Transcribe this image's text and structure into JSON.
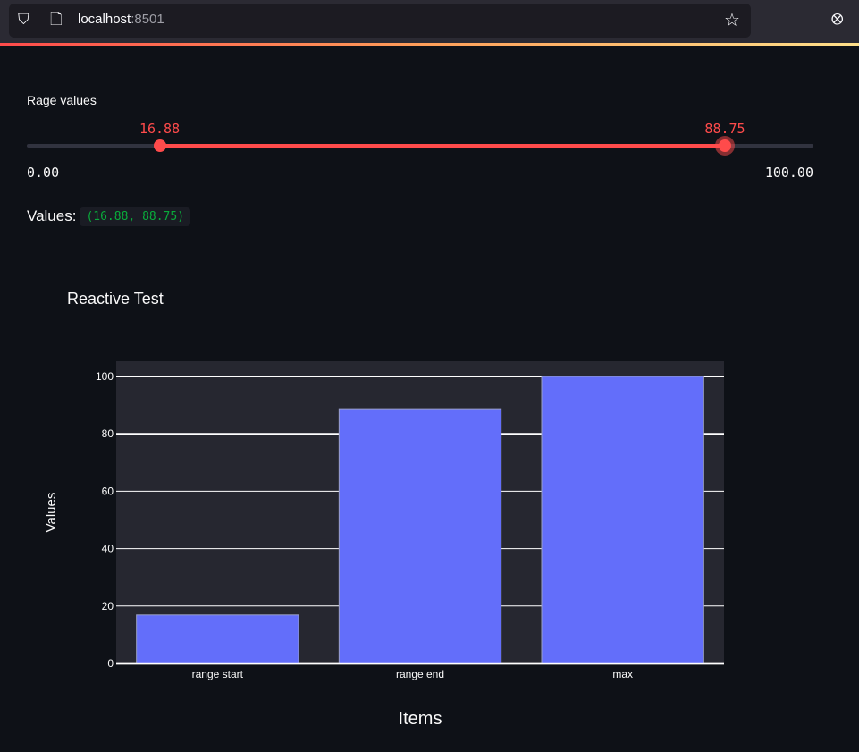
{
  "browser": {
    "host": "localhost",
    "port": ":8501",
    "icons": [
      "shield-icon",
      "page-icon",
      "star-icon",
      "pocket-icon"
    ]
  },
  "slider": {
    "label": "Rage values",
    "min": 0,
    "max": 100,
    "low": 16.88,
    "high": 88.75,
    "low_label": "16.88",
    "high_label": "88.75",
    "min_label": "0.00",
    "max_label": "100.00",
    "accent": "#ff4b4b"
  },
  "values_text": {
    "label": "Values:",
    "code": "(16.88, 88.75)"
  },
  "chart_data": {
    "type": "bar",
    "title": "Reactive Test",
    "categories": [
      "range start",
      "range end",
      "max"
    ],
    "values": [
      16.88,
      88.75,
      100
    ],
    "xlabel": "Items",
    "ylabel": "Values",
    "ylim": [
      0,
      105.3
    ],
    "yticks": [
      0,
      20,
      40,
      60,
      80,
      100
    ],
    "grid": true,
    "bar_color": "#636efa",
    "plot_bg": "#262730"
  }
}
